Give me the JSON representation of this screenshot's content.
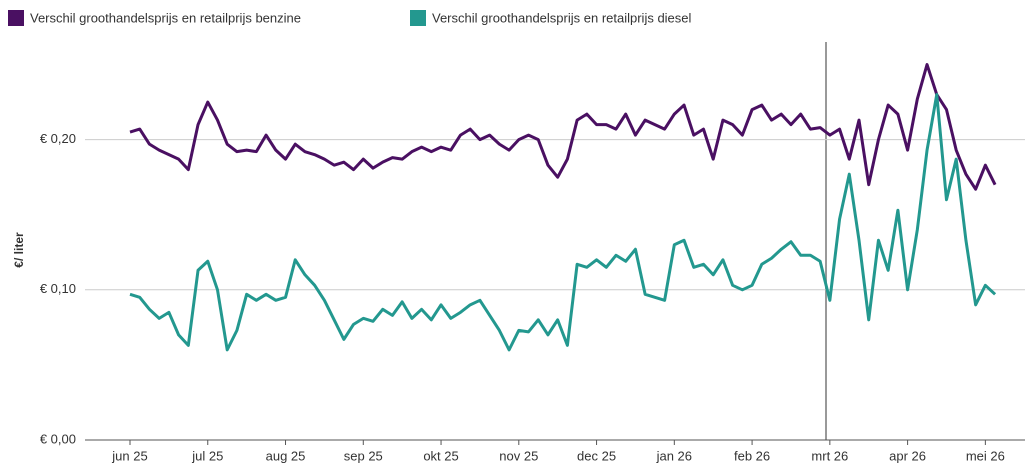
{
  "chart_data": {
    "type": "line",
    "ylabel": "€/ liter",
    "categories": [
      "jun 25",
      null,
      null,
      null,
      null,
      null,
      null,
      null,
      "jul 25",
      null,
      null,
      null,
      null,
      null,
      null,
      null,
      "aug 25",
      null,
      null,
      null,
      null,
      null,
      null,
      null,
      "sep 25",
      null,
      null,
      null,
      null,
      null,
      null,
      null,
      "okt 25",
      null,
      null,
      null,
      null,
      null,
      null,
      null,
      "nov 25",
      null,
      null,
      null,
      null,
      null,
      null,
      null,
      "dec 25",
      null,
      null,
      null,
      null,
      null,
      null,
      null,
      "jan 26",
      null,
      null,
      null,
      null,
      null,
      null,
      null,
      "feb 26",
      null,
      null,
      null,
      null,
      null,
      null,
      null,
      "mrt 26",
      null,
      null,
      null,
      null,
      null,
      null,
      null,
      "apr 26",
      null,
      null,
      null,
      null,
      null,
      null,
      null,
      "mei 26",
      null
    ],
    "series": [
      {
        "name": "Verschil groothandelsprijs en retailprijs benzine",
        "color": "#4a1062",
        "values": [
          0.205,
          0.207,
          0.197,
          0.193,
          0.19,
          0.187,
          0.18,
          0.21,
          0.225,
          0.213,
          0.197,
          0.192,
          0.193,
          0.192,
          0.203,
          0.193,
          0.187,
          0.197,
          0.192,
          0.19,
          0.187,
          0.183,
          0.185,
          0.18,
          0.187,
          0.181,
          0.185,
          0.188,
          0.187,
          0.192,
          0.195,
          0.192,
          0.195,
          0.193,
          0.203,
          0.207,
          0.2,
          0.203,
          0.197,
          0.193,
          0.2,
          0.203,
          0.2,
          0.183,
          0.175,
          0.187,
          0.213,
          0.217,
          0.21,
          0.21,
          0.207,
          0.217,
          0.203,
          0.213,
          0.21,
          0.207,
          0.217,
          0.223,
          0.203,
          0.207,
          0.187,
          0.213,
          0.21,
          0.203,
          0.22,
          0.223,
          0.213,
          0.217,
          0.21,
          0.217,
          0.207,
          0.208,
          0.203,
          0.207,
          0.187,
          0.213,
          0.17,
          0.2,
          0.223,
          0.217,
          0.193,
          0.227,
          0.25,
          0.23,
          0.22,
          0.193,
          0.177,
          0.167,
          0.183,
          0.17
        ]
      },
      {
        "name": "Verschil groothandelsprijs en retailprijs diesel",
        "color": "#23988f",
        "values": [
          0.097,
          0.095,
          0.087,
          0.081,
          0.085,
          0.07,
          0.063,
          0.113,
          0.119,
          0.1,
          0.06,
          0.073,
          0.097,
          0.093,
          0.097,
          0.093,
          0.095,
          0.12,
          0.11,
          0.103,
          0.093,
          0.08,
          0.067,
          0.077,
          0.081,
          0.079,
          0.087,
          0.083,
          0.092,
          0.081,
          0.087,
          0.08,
          0.09,
          0.081,
          0.085,
          0.09,
          0.093,
          0.083,
          0.073,
          0.06,
          0.073,
          0.072,
          0.08,
          0.07,
          0.08,
          0.063,
          0.117,
          0.115,
          0.12,
          0.115,
          0.123,
          0.119,
          0.127,
          0.097,
          0.095,
          0.093,
          0.13,
          0.133,
          0.115,
          0.117,
          0.11,
          0.12,
          0.103,
          0.1,
          0.103,
          0.117,
          0.121,
          0.127,
          0.132,
          0.123,
          0.123,
          0.119,
          0.093,
          0.147,
          0.177,
          0.133,
          0.08,
          0.133,
          0.113,
          0.153,
          0.1,
          0.14,
          0.193,
          0.23,
          0.16,
          0.187,
          0.133,
          0.09,
          0.103,
          0.097
        ]
      }
    ],
    "ylim": [
      0,
      0.265
    ],
    "yticks": [
      {
        "value": 0,
        "label": "€ 0,00"
      },
      {
        "value": 0.1,
        "label": "€ 0,10"
      },
      {
        "value": 0.2,
        "label": "€ 0,20"
      }
    ],
    "grid": true
  }
}
